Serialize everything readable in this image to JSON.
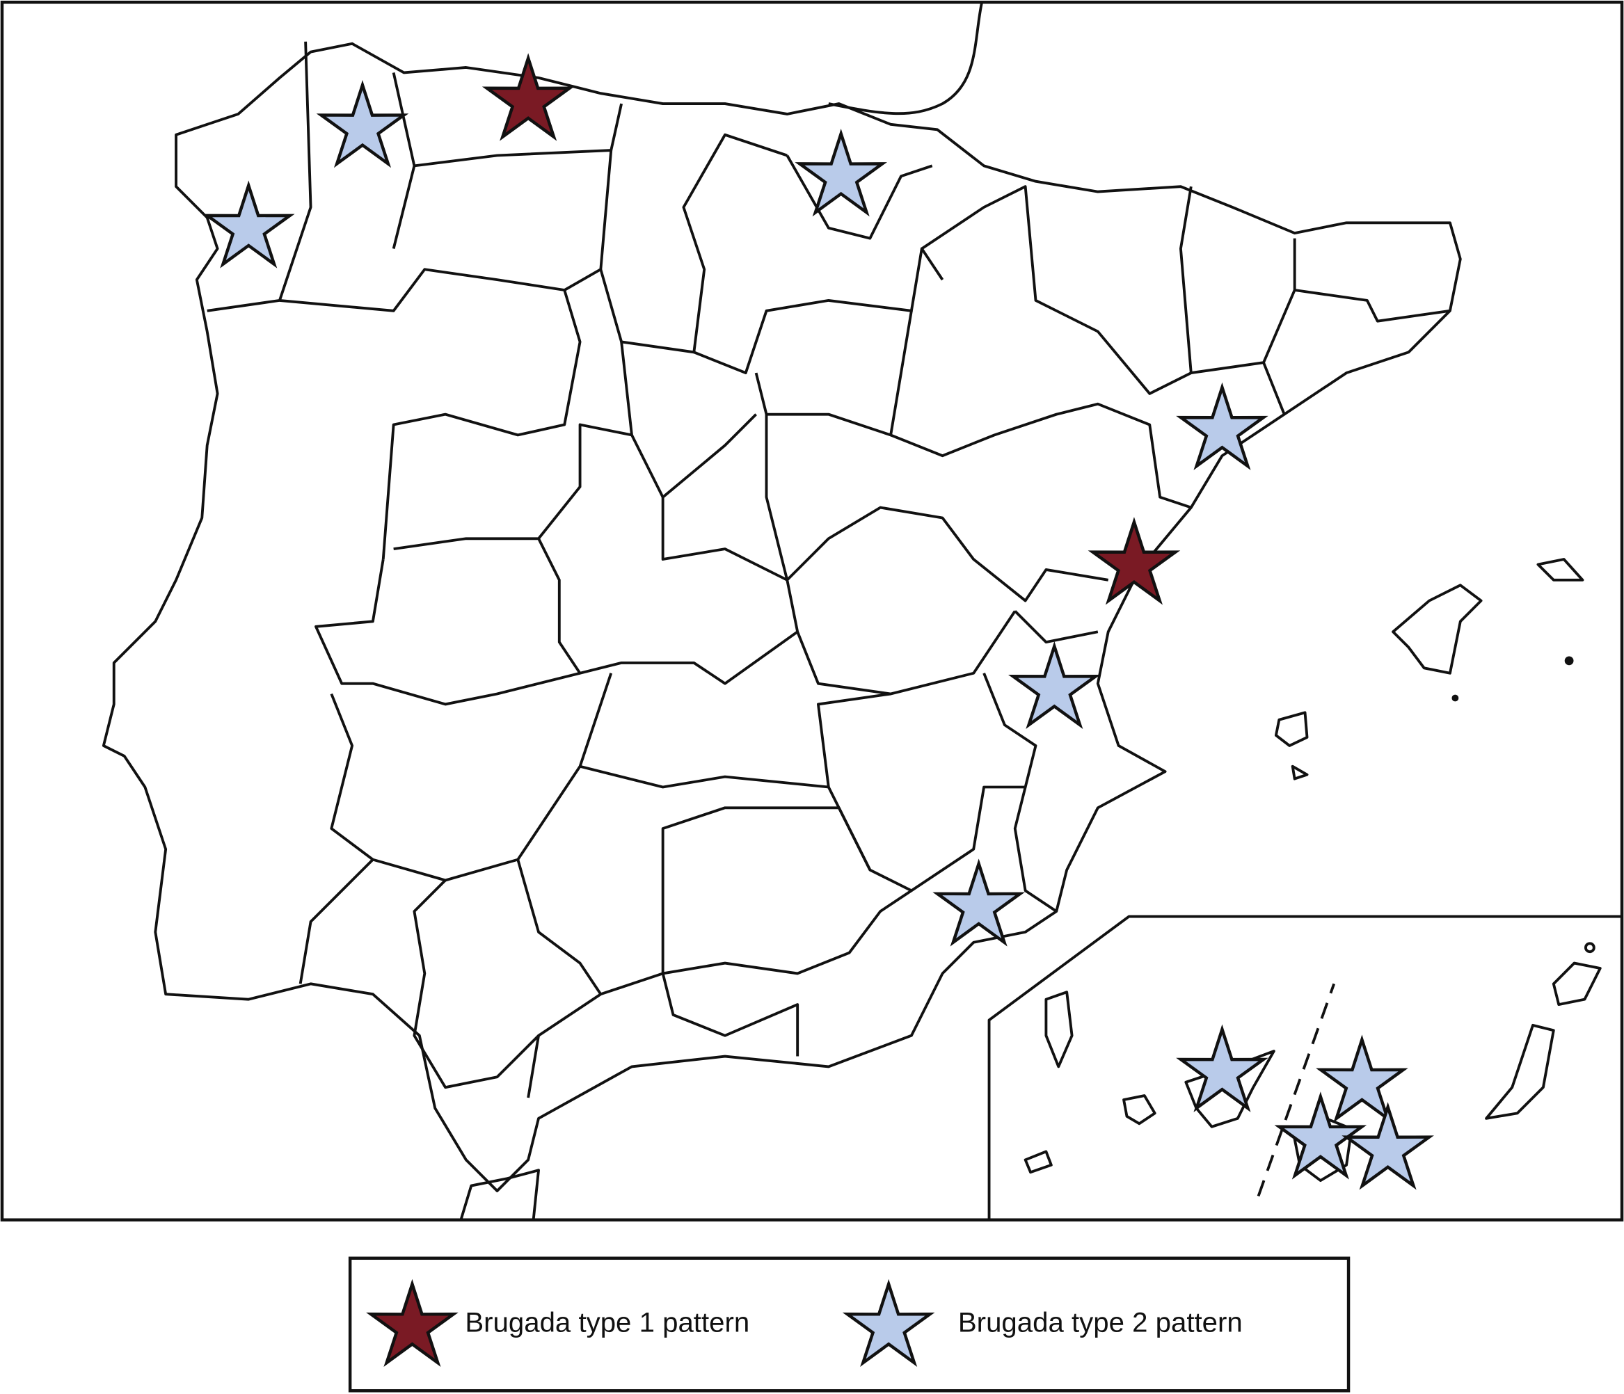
{
  "map": {
    "markers": [
      {
        "type": 1
      },
      {
        "type": 1
      },
      {
        "type": 2
      },
      {
        "type": 2
      },
      {
        "type": 2
      },
      {
        "type": 2
      },
      {
        "type": 2
      },
      {
        "type": 2
      },
      {
        "type": 2
      },
      {
        "type": 2
      },
      {
        "type": 2
      },
      {
        "type": 2
      }
    ],
    "inset": "Canary Islands"
  },
  "legend": {
    "items": [
      {
        "label": "Brugada type 1 pattern",
        "color": "#7a1a24"
      },
      {
        "label": "Brugada type 2 pattern",
        "color": "#b9cbea"
      }
    ]
  }
}
